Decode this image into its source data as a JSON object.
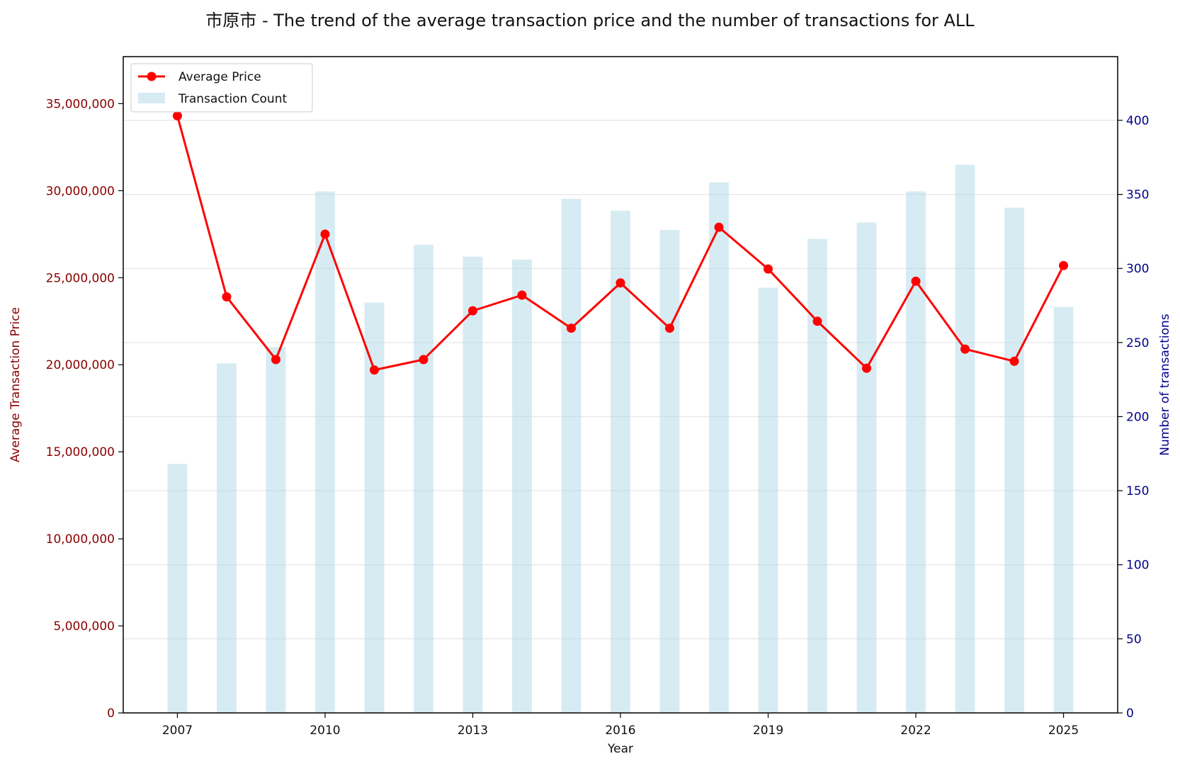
{
  "chart_data": {
    "type": "bar+line",
    "title": "市原市 - The trend of the average transaction price and the number of transactions for ALL",
    "xlabel": "Year",
    "ylabel_left": "Average Transaction Price",
    "ylabel_right": "Number of transactions",
    "years": [
      2007,
      2008,
      2009,
      2010,
      2011,
      2012,
      2013,
      2014,
      2015,
      2016,
      2017,
      2018,
      2019,
      2020,
      2021,
      2022,
      2023,
      2024,
      2025
    ],
    "x_ticks": [
      "2007",
      "2010",
      "2013",
      "2016",
      "2019",
      "2022",
      "2025"
    ],
    "left_ticks": [
      "0",
      "5,000,000",
      "10,000,000",
      "15,000,000",
      "20,000,000",
      "25,000,000",
      "30,000,000",
      "35,000,000"
    ],
    "right_ticks": [
      "0",
      "50",
      "100",
      "150",
      "200",
      "250",
      "300",
      "350",
      "400"
    ],
    "ylim_left": [
      0,
      37700000
    ],
    "ylim_right": [
      0,
      443
    ],
    "xlim": [
      2005.9,
      2026.1
    ],
    "grid": "horizontal",
    "legend_position": "top-left",
    "series": [
      {
        "name": "Average Price",
        "kind": "line",
        "axis": "left",
        "color": "#ff0000",
        "values": [
          34300000,
          23900000,
          20300000,
          27500000,
          19700000,
          20300000,
          23100000,
          24000000,
          22100000,
          24700000,
          22100000,
          27900000,
          25500000,
          22500000,
          19800000,
          24800000,
          20900000,
          20200000,
          25700000
        ]
      },
      {
        "name": "Transaction Count",
        "kind": "bar",
        "axis": "right",
        "color": "#add8e6",
        "values": [
          168,
          236,
          247,
          352,
          277,
          316,
          308,
          306,
          347,
          339,
          326,
          358,
          287,
          320,
          331,
          352,
          370,
          341,
          274
        ]
      }
    ],
    "colors": {
      "left_axis": "#8b0000",
      "right_axis": "#00008b",
      "line": "#ff0000",
      "bar": "#add8e6"
    }
  }
}
